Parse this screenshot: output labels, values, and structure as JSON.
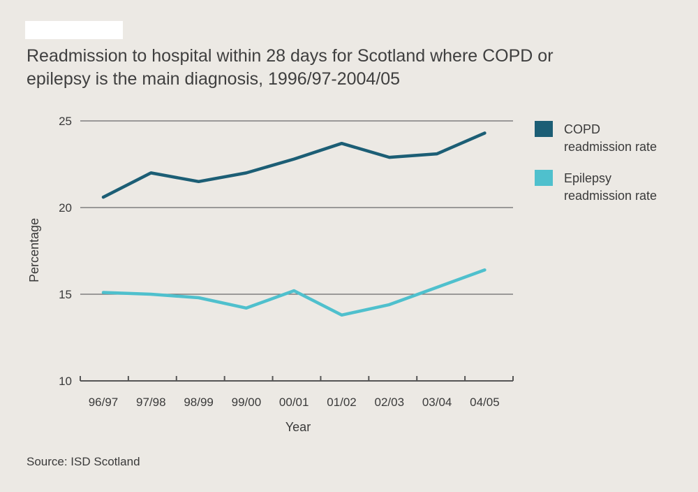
{
  "chart_data": {
    "type": "line",
    "title_line1": "Readmission to hospital within 28 days for Scotland where COPD or",
    "title_line2": "epilepsy is the main diagnosis, 1996/97-2004/05",
    "xlabel": "Year",
    "ylabel": "Percentage",
    "categories": [
      "96/97",
      "97/98",
      "98/99",
      "99/00",
      "00/01",
      "01/02",
      "02/03",
      "03/04",
      "04/05"
    ],
    "ylim": [
      10,
      25
    ],
    "yticks": [
      10,
      15,
      20,
      25
    ],
    "grid": true,
    "legend_position": "right",
    "series": [
      {
        "name_line1": "COPD",
        "name_line2": "readmission rate",
        "color": "#1c5e75",
        "values": [
          20.6,
          22.0,
          21.5,
          22.0,
          22.8,
          23.7,
          22.9,
          23.1,
          24.3
        ]
      },
      {
        "name_line1": "Epilepsy",
        "name_line2": "readmission rate",
        "color": "#4fc0cd",
        "values": [
          15.1,
          15.0,
          14.8,
          14.2,
          15.2,
          13.8,
          14.4,
          15.4,
          16.4
        ]
      }
    ],
    "source": "Source: ISD Scotland"
  }
}
